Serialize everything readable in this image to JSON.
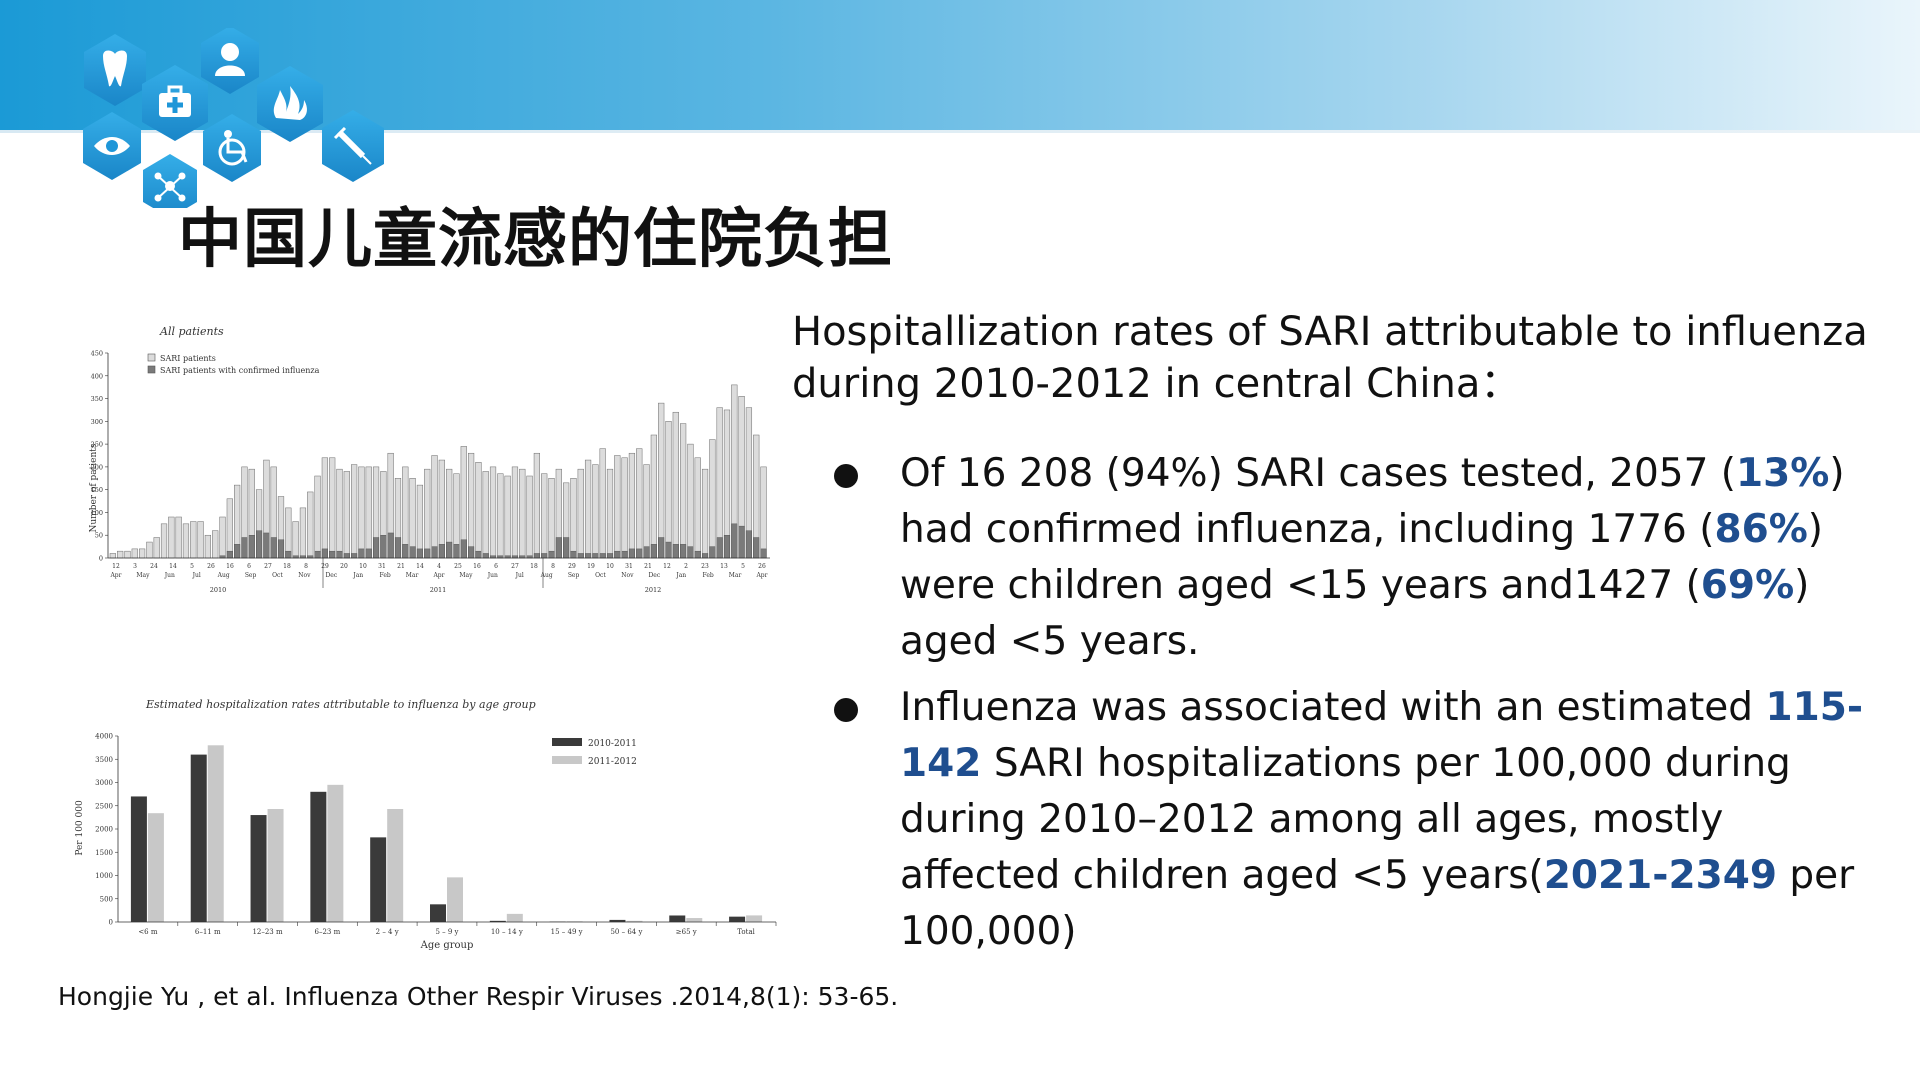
{
  "slide": {
    "title": "中国儿童流感的住院负担",
    "intro_line1": "Hospitallization rates of  SARI attributable to influenza",
    "intro_line2": "during 2010-2012 in central China：",
    "bullet1": {
      "t1": "Of 16 208 (94%) SARI cases tested, 2057 (",
      "h1": "13%",
      "t2": ") had confirmed influenza, including 1776 (",
      "h2": "86%",
      "t3": ") were children aged <15 years and1427 (",
      "h3": "69%",
      "t4": ") aged <5 years."
    },
    "bullet2": {
      "t1": "Influenza was associated with an estimated ",
      "h1": "115-142",
      "t2": " SARI hospitalizations per 100,000 during during 2010–2012 among all ages, mostly affected children aged <5 years(",
      "h2": "2021-2349",
      "t3": " per 100,000)"
    },
    "citation": "Hongjie Yu , et al. Influenza Other Respir Viruses .2014,8(1): 53-65."
  },
  "colors": {
    "highlight": "#1f4e8f",
    "banner_start": "#1b9ad6",
    "hex_fill": "#1e96d8",
    "bar_sari": "#dcdcdc",
    "bar_flu": "#7a7a7a",
    "bar_2010": "#3a3a3a",
    "bar_2011": "#c8c8c8"
  },
  "icons": [
    "tooth-icon",
    "person-icon",
    "medical-kit-icon",
    "flame-drops-icon",
    "eye-icon",
    "wheelchair-icon",
    "syringe-icon",
    "molecule-icon"
  ],
  "chart_data": [
    {
      "type": "bar",
      "title": "All patients",
      "ylabel": "Number of patients",
      "ylim": [
        0,
        450
      ],
      "yticks": [
        0,
        50,
        100,
        150,
        200,
        250,
        300,
        350,
        400,
        450
      ],
      "legend": [
        "SARI patients",
        "SARI patients with confirmed influenza"
      ],
      "legend_position": "top-left",
      "weekly_sari": [
        10,
        15,
        15,
        20,
        20,
        35,
        45,
        75,
        90,
        90,
        75,
        80,
        80,
        50,
        60,
        90,
        130,
        160,
        200,
        195,
        150,
        215,
        200,
        135,
        110,
        80,
        110,
        145,
        180,
        220,
        220,
        195,
        190,
        205,
        200,
        200,
        200,
        190,
        230,
        175,
        200,
        175,
        160,
        195,
        225,
        215,
        195,
        185,
        245,
        230,
        210,
        190,
        200,
        185,
        180,
        200,
        195,
        180,
        230,
        185,
        175,
        195,
        165,
        175,
        195,
        215,
        205,
        240,
        195,
        225,
        220,
        230,
        240,
        205,
        270,
        340,
        300,
        320,
        295,
        250,
        220,
        195,
        260,
        330,
        325,
        380,
        355,
        330,
        270,
        200
      ],
      "weekly_flu": [
        0,
        0,
        0,
        0,
        0,
        0,
        0,
        0,
        0,
        0,
        0,
        0,
        0,
        0,
        0,
        5,
        15,
        30,
        45,
        50,
        60,
        55,
        45,
        40,
        15,
        5,
        5,
        5,
        15,
        20,
        15,
        15,
        10,
        10,
        20,
        20,
        45,
        50,
        55,
        45,
        30,
        25,
        20,
        20,
        25,
        30,
        35,
        30,
        40,
        25,
        15,
        10,
        5,
        5,
        5,
        5,
        5,
        5,
        10,
        10,
        15,
        45,
        45,
        15,
        10,
        10,
        10,
        10,
        10,
        15,
        15,
        20,
        20,
        25,
        30,
        45,
        35,
        30,
        30,
        25,
        15,
        10,
        25,
        45,
        50,
        75,
        70,
        60,
        45,
        20
      ],
      "month_labels": [
        "Apr",
        "May",
        "Jun",
        "Jul",
        "Aug",
        "Sep",
        "Oct",
        "Nov",
        "Dec",
        "Jan",
        "Feb",
        "Mar",
        "Apr",
        "May",
        "Jun",
        "Jul",
        "Aug",
        "Sep",
        "Oct",
        "Nov",
        "Dec",
        "Jan",
        "Feb",
        "Mar",
        "Apr"
      ],
      "day_labels": [
        "12",
        "3",
        "24",
        "14",
        "5",
        "26",
        "16",
        "6",
        "27",
        "18",
        "8",
        "29",
        "20",
        "10",
        "31",
        "21",
        "14",
        "4",
        "25",
        "16",
        "6",
        "27",
        "18",
        "8",
        "29",
        "19",
        "10",
        "31",
        "21",
        "12",
        "2",
        "23",
        "13",
        "5",
        "26"
      ],
      "year_labels": [
        "2010",
        "2011",
        "2012"
      ]
    },
    {
      "type": "bar",
      "title": "Estimated hospitalization rates attributable to influenza by age group",
      "xlabel": "Age group",
      "ylabel": "Per 100 000",
      "ylim": [
        0,
        4000
      ],
      "yticks": [
        0,
        500,
        1000,
        1500,
        2000,
        2500,
        3000,
        3500,
        4000
      ],
      "categories": [
        "<6 m",
        "6–11 m",
        "12–23 m",
        "6–23 m",
        "2 – 4 y",
        "5 – 9 y",
        "10 – 14 y",
        "15 – 49 y",
        "50 – 64 y",
        "≥65 y",
        "Total"
      ],
      "series": [
        {
          "name": "2010-2011",
          "values": [
            2700,
            3600,
            2300,
            2800,
            1820,
            380,
            25,
            10,
            45,
            140,
            115
          ]
        },
        {
          "name": "2011-2012",
          "values": [
            2340,
            3800,
            2430,
            2950,
            2430,
            960,
            175,
            15,
            25,
            85,
            142
          ]
        }
      ],
      "legend_position": "top-right"
    }
  ]
}
